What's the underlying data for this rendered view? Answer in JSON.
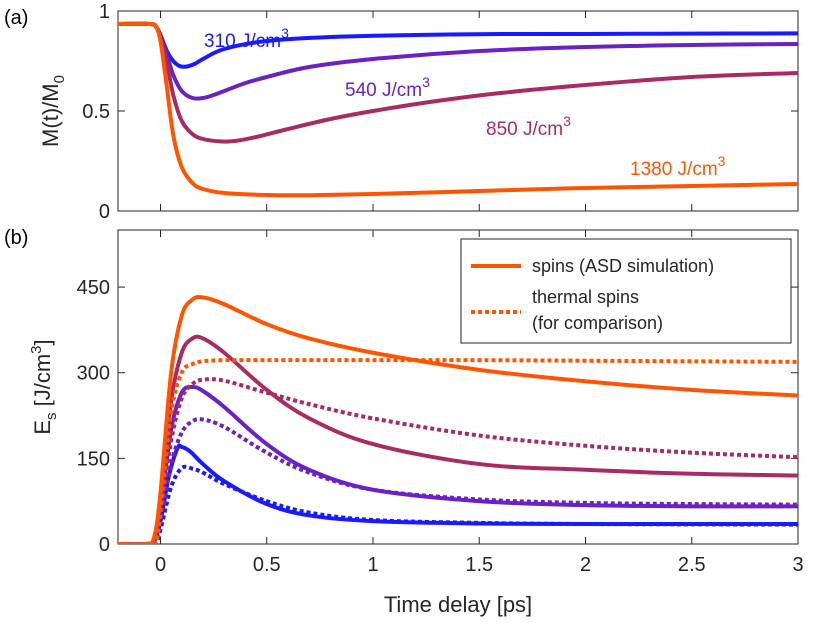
{
  "chart_data": [
    {
      "panel": "a",
      "type": "line",
      "panel_label": "(a)",
      "ylabel": {
        "main": "M(t)/M",
        "sub": "0"
      },
      "xlim": [
        -0.2,
        3
      ],
      "ylim": [
        0,
        1
      ],
      "xticks": [
        "0",
        "0.5",
        "1",
        "1.5",
        "2",
        "2.5",
        "3"
      ],
      "xtick_values": [
        0,
        0.5,
        1,
        1.5,
        2,
        2.5,
        3
      ],
      "yticks": [
        "0",
        "0.5",
        "1"
      ],
      "ytick_values": [
        0,
        0.5,
        1
      ],
      "series": [
        {
          "name": "310 J/cm3",
          "label": {
            "text": "310 J/cm",
            "sup": "3"
          },
          "color": "#1a1aff",
          "x": [
            -0.2,
            -0.05,
            -0.02,
            0,
            0.03,
            0.06,
            0.09,
            0.12,
            0.16,
            0.2,
            0.3,
            0.5,
            0.8,
            1.2,
            1.6,
            2,
            2.5,
            3
          ],
          "y": [
            0.935,
            0.935,
            0.92,
            0.88,
            0.8,
            0.75,
            0.725,
            0.722,
            0.735,
            0.76,
            0.81,
            0.85,
            0.87,
            0.88,
            0.885,
            0.885,
            0.887,
            0.888
          ]
        },
        {
          "name": "540 J/cm3",
          "label": {
            "text": "540 J/cm",
            "sup": "3"
          },
          "color": "#6a22c2",
          "x": [
            -0.2,
            -0.05,
            -0.02,
            0,
            0.03,
            0.06,
            0.1,
            0.15,
            0.2,
            0.25,
            0.3,
            0.4,
            0.5,
            0.7,
            1,
            1.5,
            2,
            2.5,
            3
          ],
          "y": [
            0.935,
            0.935,
            0.92,
            0.87,
            0.78,
            0.68,
            0.6,
            0.565,
            0.565,
            0.58,
            0.6,
            0.64,
            0.67,
            0.72,
            0.76,
            0.8,
            0.82,
            0.83,
            0.835
          ]
        },
        {
          "name": "850 J/cm3",
          "label": {
            "text": "850 J/cm",
            "sup": "3"
          },
          "color": "#a82c63",
          "x": [
            -0.2,
            -0.05,
            -0.02,
            0,
            0.03,
            0.06,
            0.1,
            0.15,
            0.2,
            0.28,
            0.35,
            0.45,
            0.6,
            0.8,
            1,
            1.3,
            1.6,
            2,
            2.5,
            3
          ],
          "y": [
            0.935,
            0.935,
            0.92,
            0.86,
            0.74,
            0.58,
            0.45,
            0.385,
            0.36,
            0.348,
            0.35,
            0.37,
            0.41,
            0.46,
            0.5,
            0.55,
            0.59,
            0.63,
            0.67,
            0.69
          ]
        },
        {
          "name": "1380 J/cm3",
          "label": {
            "text": "1380 J/cm",
            "sup": "3"
          },
          "color": "#ff5500",
          "x": [
            -0.2,
            -0.05,
            -0.02,
            0,
            0.03,
            0.06,
            0.1,
            0.15,
            0.2,
            0.3,
            0.5,
            0.7,
            1,
            1.5,
            2,
            2.5,
            3
          ],
          "y": [
            0.935,
            0.935,
            0.92,
            0.85,
            0.62,
            0.38,
            0.22,
            0.14,
            0.11,
            0.09,
            0.08,
            0.079,
            0.085,
            0.1,
            0.115,
            0.125,
            0.135
          ]
        }
      ]
    },
    {
      "panel": "b",
      "type": "line",
      "panel_label": "(b)",
      "xlabel": "Time delay [ps]",
      "ylabel": {
        "main": "E",
        "sub": "s",
        "rest": " [J/cm",
        "sup": "3",
        "close": "]"
      },
      "xlim": [
        -0.2,
        3
      ],
      "ylim": [
        0,
        550
      ],
      "xticks": [
        "0",
        "0.5",
        "1",
        "1.5",
        "2",
        "2.5",
        "3"
      ],
      "xtick_values": [
        0,
        0.5,
        1,
        1.5,
        2,
        2.5,
        3
      ],
      "yticks": [
        "0",
        "150",
        "300",
        "450"
      ],
      "ytick_values": [
        0,
        150,
        300,
        450
      ],
      "legend": {
        "position": "top-right",
        "entries": [
          {
            "label": "spins (ASD simulation)",
            "style": "solid",
            "color": "#ff5500"
          },
          {
            "label": [
              "thermal spins",
              "(for comparison)"
            ],
            "style": "dotted",
            "color": "#ff5500"
          }
        ]
      },
      "series": [
        {
          "name": "spins 310 J/cm3",
          "style": "solid",
          "color": "#1a1aff",
          "x": [
            -0.2,
            -0.07,
            -0.03,
            0,
            0.04,
            0.08,
            0.1,
            0.14,
            0.2,
            0.3,
            0.5,
            0.7,
            1,
            1.5,
            2,
            3
          ],
          "y": [
            0,
            0,
            5,
            40,
            120,
            168,
            170,
            162,
            140,
            110,
            70,
            50,
            40,
            36,
            35,
            35
          ]
        },
        {
          "name": "thermal 310 J/cm3",
          "style": "dotted",
          "color": "#1a1aff",
          "x": [
            -0.2,
            -0.06,
            -0.02,
            0,
            0.05,
            0.1,
            0.15,
            0.2,
            0.3,
            0.5,
            0.7,
            1,
            1.5,
            2,
            3
          ],
          "y": [
            0,
            0,
            3,
            25,
            100,
            133,
            132,
            125,
            105,
            75,
            55,
            42,
            37,
            35,
            34
          ]
        },
        {
          "name": "spins 540 J/cm3",
          "style": "solid",
          "color": "#6a22c2",
          "x": [
            -0.2,
            -0.07,
            -0.03,
            0,
            0.05,
            0.1,
            0.15,
            0.2,
            0.3,
            0.5,
            0.7,
            1,
            1.5,
            2,
            2.5,
            3
          ],
          "y": [
            0,
            0,
            8,
            60,
            200,
            265,
            275,
            268,
            240,
            175,
            130,
            95,
            75,
            68,
            66,
            66
          ]
        },
        {
          "name": "thermal 540 J/cm3",
          "style": "dotted",
          "color": "#6a22c2",
          "x": [
            -0.2,
            -0.06,
            -0.02,
            0,
            0.05,
            0.1,
            0.15,
            0.2,
            0.3,
            0.5,
            0.7,
            1,
            1.5,
            2,
            2.5,
            3
          ],
          "y": [
            0,
            0,
            5,
            40,
            140,
            195,
            215,
            218,
            205,
            160,
            125,
            95,
            78,
            72,
            70,
            69
          ]
        },
        {
          "name": "spins 850 J/cm3",
          "style": "solid",
          "color": "#a82c63",
          "x": [
            -0.2,
            -0.07,
            -0.03,
            0,
            0.05,
            0.1,
            0.15,
            0.2,
            0.3,
            0.5,
            0.7,
            1,
            1.5,
            2,
            2.5,
            3
          ],
          "y": [
            0,
            0,
            10,
            75,
            250,
            335,
            360,
            360,
            335,
            270,
            220,
            175,
            140,
            130,
            123,
            120
          ]
        },
        {
          "name": "thermal 850 J/cm3",
          "style": "dotted",
          "color": "#a82c63",
          "x": [
            -0.2,
            -0.06,
            -0.02,
            0,
            0.05,
            0.1,
            0.15,
            0.2,
            0.3,
            0.5,
            0.7,
            1,
            1.5,
            2,
            2.5,
            3
          ],
          "y": [
            0,
            0,
            5,
            50,
            180,
            255,
            280,
            288,
            286,
            265,
            245,
            220,
            190,
            172,
            160,
            152
          ]
        },
        {
          "name": "spins 1380 J/cm3",
          "style": "solid",
          "color": "#ff5500",
          "x": [
            -0.2,
            -0.07,
            -0.03,
            0,
            0.05,
            0.1,
            0.15,
            0.2,
            0.3,
            0.5,
            0.7,
            1,
            1.5,
            2,
            2.5,
            3
          ],
          "y": [
            0,
            0,
            12,
            90,
            300,
            400,
            428,
            432,
            420,
            385,
            360,
            335,
            305,
            285,
            270,
            260
          ]
        },
        {
          "name": "thermal 1380 J/cm3",
          "style": "dotted",
          "color": "#ff5500",
          "x": [
            -0.2,
            -0.06,
            -0.02,
            0,
            0.05,
            0.1,
            0.15,
            0.2,
            0.3,
            0.5,
            1,
            1.5,
            2,
            2.5,
            3
          ],
          "y": [
            0,
            0,
            5,
            60,
            230,
            300,
            315,
            320,
            322,
            322,
            322,
            322,
            321,
            320,
            319
          ]
        }
      ]
    }
  ]
}
